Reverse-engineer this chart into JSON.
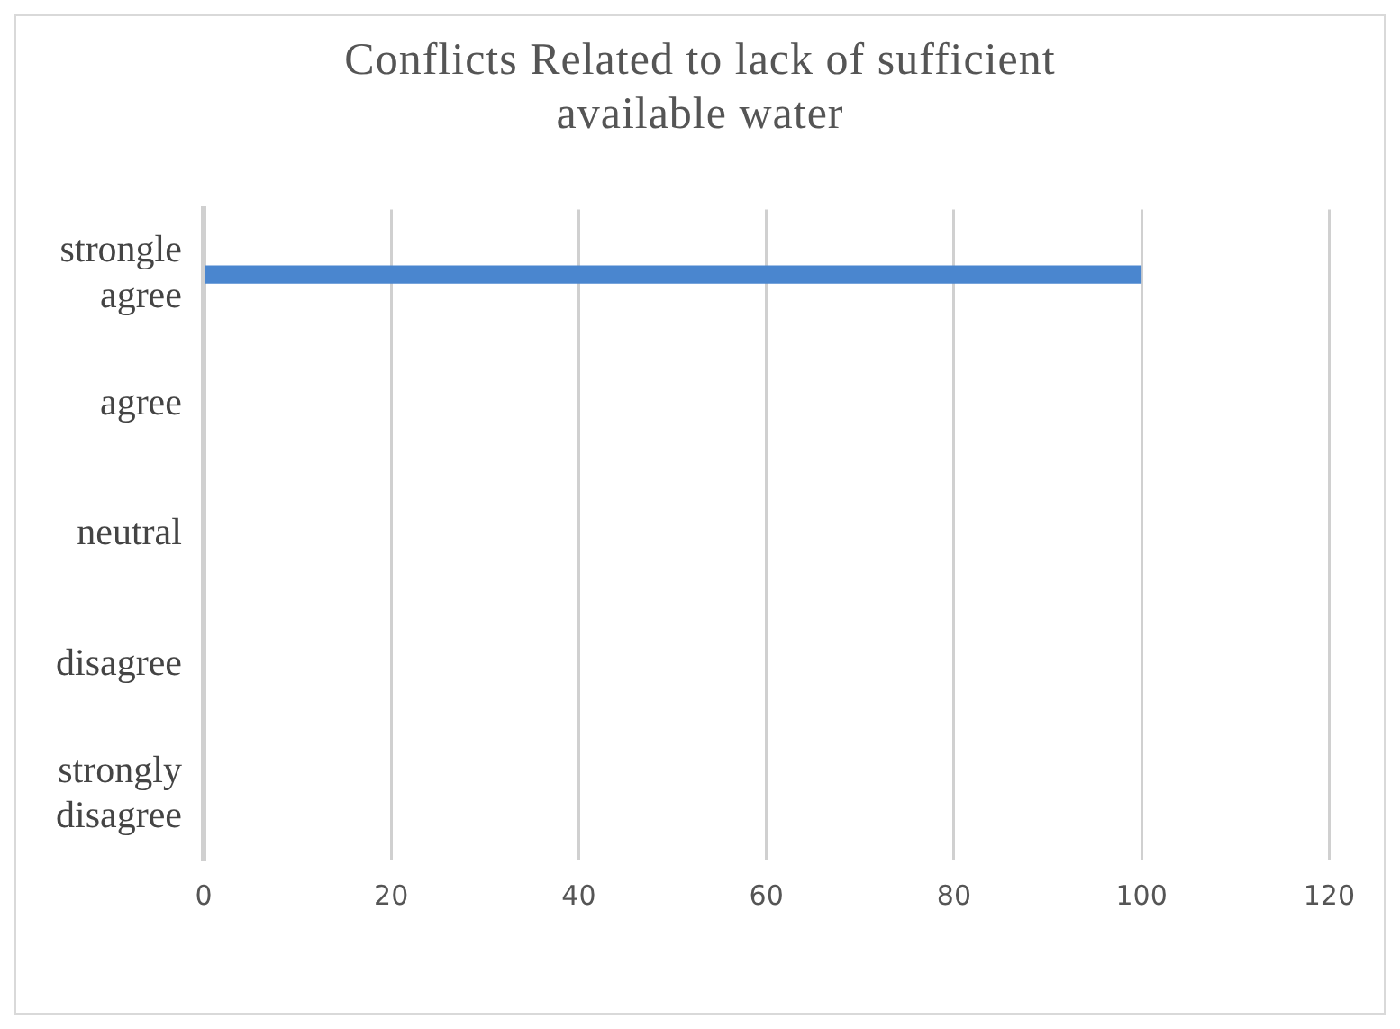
{
  "chart_data": {
    "type": "bar",
    "orientation": "horizontal",
    "title": "Conflicts  Related to lack of sufficient available water",
    "categories": [
      "strongle agree",
      "agree",
      "neutral",
      "disagree",
      "strongly disagree"
    ],
    "values": [
      100,
      0,
      0,
      0,
      0
    ],
    "color": "#4a86cf",
    "xlim": [
      0,
      120
    ],
    "xticks": [
      0,
      20,
      40,
      60,
      80,
      100,
      120
    ],
    "grid": "x"
  }
}
